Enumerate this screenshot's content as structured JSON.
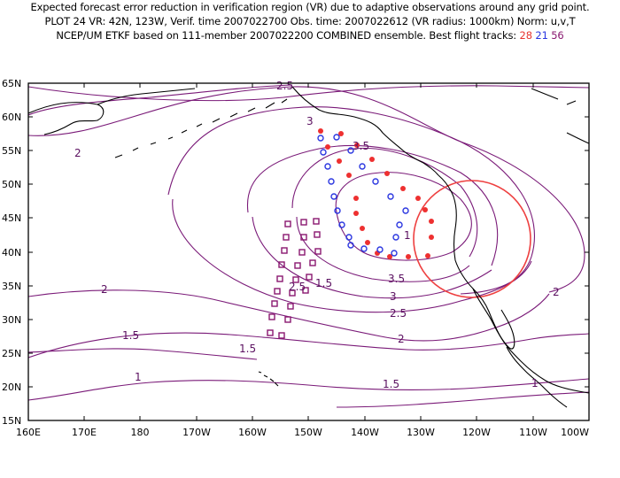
{
  "title": {
    "line1": "Expected forecast error reduction in verification region (VR) due to adaptive observations around any grid point.",
    "line2": "PLOT 24 VR: 42N, 123W, Verif. time 2007022700 Obs. time: 2007022612 (VR radius: 1000km) Norm: u,v,T",
    "line3_prefix": "NCEP/UM ETKF based on 111-member 2007022200 COMBINED ensemble.  Best flight tracks:",
    "track_red": "28",
    "track_blue": "21",
    "track_purple": "56"
  },
  "map": {
    "lat_labels": [
      "65N",
      "60N",
      "55N",
      "50N",
      "45N",
      "40N",
      "35N",
      "30N",
      "25N",
      "20N",
      "15N"
    ],
    "lon_labels": [
      "160E",
      "170E",
      "180",
      "170W",
      "160W",
      "150W",
      "140W",
      "130W",
      "120W",
      "110W",
      "100W"
    ],
    "contour_labels": [
      "2.5",
      "3",
      "3.5",
      "2",
      "3.5",
      "3",
      "2.5",
      "2",
      "2",
      "2",
      "1.5",
      "1.5",
      "1.5",
      "1",
      "1.5",
      "1",
      "1",
      "2.5",
      "2"
    ],
    "colors": {
      "contour": "#7a1a78",
      "vr_circle": "#ee4040",
      "track_red": "#ee3030",
      "track_blue": "#2a36e0",
      "track_purple": "#8a1870",
      "coast": "#000000"
    }
  }
}
